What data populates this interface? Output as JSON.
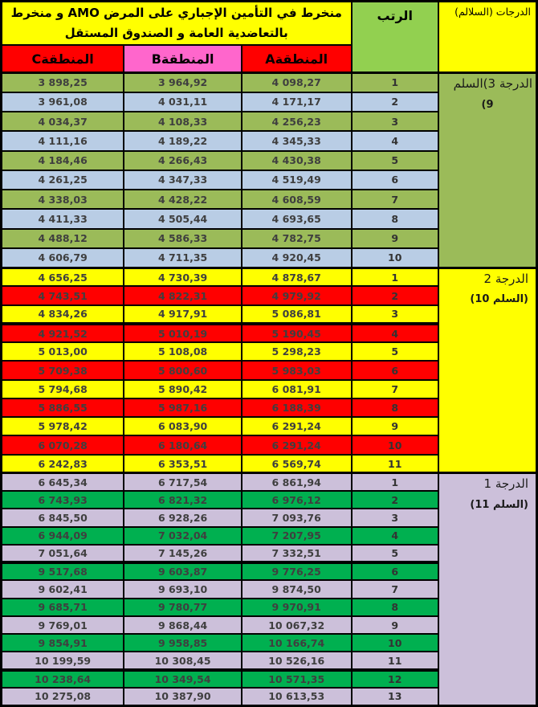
{
  "colors": {
    "yellow": "#FFFF00",
    "red": "#FF0000",
    "pink": "#FF66CC",
    "rank_green": "#92D050",
    "olive": "#9BBB59",
    "light_blue": "#B9CDE5",
    "lavender": "#CCC0DA",
    "green": "#00B050",
    "border": "#000000",
    "number_text": "#3F3F3F"
  },
  "header": {
    "title_line1": "منخرط في التأمين الإجباري على المرض AMO و منخرط",
    "title_line2": "بالتعاضدية العامة و الصندوق المستقل",
    "rank_label": "الرتب",
    "grades_label": "الدرجات (السلالم)",
    "region_a": "المنطقةA",
    "region_b": "المنطقةB",
    "region_c": "المنطقةC"
  },
  "groups": [
    {
      "degree_line1": "الدرجة 3)السلم",
      "degree_line2": "9)",
      "rows": [
        {
          "rank": "1",
          "a": "4 098,27",
          "b": "3 964,92",
          "c": "3 898,25"
        },
        {
          "rank": "2",
          "a": "4 171,17",
          "b": "4 031,11",
          "c": "3 961,08"
        },
        {
          "rank": "3",
          "a": "4 256,23",
          "b": "4 108,33",
          "c": "4 034,37"
        },
        {
          "rank": "4",
          "a": "4 345,33",
          "b": "4 189,22",
          "c": "4 111,16"
        },
        {
          "rank": "5",
          "a": "4 430,38",
          "b": "4 266,43",
          "c": "4 184,46"
        },
        {
          "rank": "6",
          "a": "4 519,49",
          "b": "4 347,33",
          "c": "4 261,25"
        },
        {
          "rank": "7",
          "a": "4 608,59",
          "b": "4 428,22",
          "c": "4 338,03"
        },
        {
          "rank": "8",
          "a": "4 693,65",
          "b": "4 505,44",
          "c": "4 411,33"
        },
        {
          "rank": "9",
          "a": "4 782,75",
          "b": "4 586,33",
          "c": "4 488,12"
        },
        {
          "rank": "10",
          "a": "4 920,45",
          "b": "4 711,35",
          "c": "4 606,79"
        }
      ]
    },
    {
      "degree_line1": "الدرجة 2",
      "degree_line2": "(السلم 10)",
      "rows": [
        {
          "rank": "1",
          "a": "4 878,67",
          "b": "4 730,39",
          "c": "4 656,25"
        },
        {
          "rank": "2",
          "a": "4 979,92",
          "b": "4 822,31",
          "c": "4 743,51"
        },
        {
          "rank": "3",
          "a": "5 086,81",
          "b": "4 917,91",
          "c": "4 834,26"
        },
        {
          "rank": "4",
          "a": "5 190,45",
          "b": "5 010,19",
          "c": "4 921,52"
        },
        {
          "rank": "5",
          "a": "5 298,23",
          "b": "5 108,08",
          "c": "5 013,00"
        },
        {
          "rank": "6",
          "a": "5 983,03",
          "b": "5 800,60",
          "c": "5 709,38"
        },
        {
          "rank": "7",
          "a": "6 081,91",
          "b": "5 890,42",
          "c": "5 794,68"
        },
        {
          "rank": "8",
          "a": "6 188,39",
          "b": "5 987,16",
          "c": "5 886,55"
        },
        {
          "rank": "9",
          "a": "6 291,24",
          "b": "6 083,90",
          "c": "5 978,42"
        },
        {
          "rank": "10",
          "a": "6 291,24",
          "b": "6 180,64",
          "c": "6 070,28"
        },
        {
          "rank": "11",
          "a": "6 569,74",
          "b": "6 353,51",
          "c": "6 242,83"
        }
      ]
    },
    {
      "degree_line1": "الدرجة 1",
      "degree_line2": "(السلم 11)",
      "rows": [
        {
          "rank": "1",
          "a": "6 861,94",
          "b": "6 717,54",
          "c": "6 645,34"
        },
        {
          "rank": "2",
          "a": "6 976,12",
          "b": "6 821,32",
          "c": "6 743,93"
        },
        {
          "rank": "3",
          "a": "7 093,76",
          "b": "6 928,26",
          "c": "6 845,50"
        },
        {
          "rank": "4",
          "a": "7 207,95",
          "b": "7 032,04",
          "c": "6 944,09"
        },
        {
          "rank": "5",
          "a": "7 332,51",
          "b": "7 145,26",
          "c": "7 051,64"
        },
        {
          "rank": "6",
          "a": "9 776,25",
          "b": "9 603,87",
          "c": "9 517,68"
        },
        {
          "rank": "7",
          "a": "9 874,50",
          "b": "9 693,10",
          "c": "9 602,41"
        },
        {
          "rank": "8",
          "a": "9 970,91",
          "b": "9 780,77",
          "c": "9 685,71"
        },
        {
          "rank": "9",
          "a": "10 067,32",
          "b": "9 868,44",
          "c": "9 769,01"
        },
        {
          "rank": "10",
          "a": "10 166,74",
          "b": "9 958,85",
          "c": "9 854,91"
        },
        {
          "rank": "11",
          "a": "10 526,16",
          "b": "10 308,45",
          "c": "10 199,59"
        },
        {
          "rank": "12",
          "a": "10 571,35",
          "b": "10 349,54",
          "c": "10 238,64"
        },
        {
          "rank": "13",
          "a": "10 613,53",
          "b": "10 387,90",
          "c": "10 275,08"
        }
      ]
    }
  ]
}
